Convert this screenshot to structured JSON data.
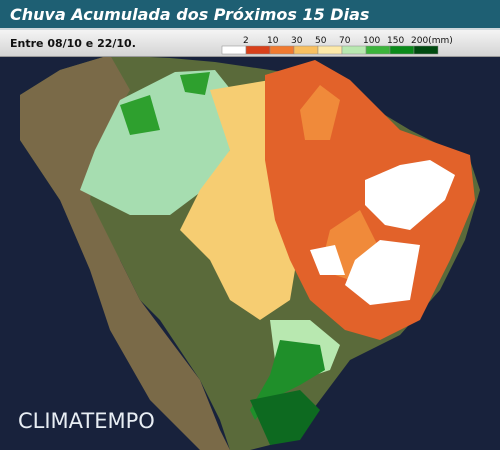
{
  "header": {
    "title": "Chuva Acumulada dos Próximos 15 Dias"
  },
  "subheader": {
    "period": "Entre 08/10 e 22/10.",
    "legend": {
      "labels": [
        "2",
        "10",
        "30",
        "50",
        "70",
        "100",
        "150",
        "200(mm)"
      ],
      "colors": [
        "#ffffff",
        "#d8401a",
        "#f07a30",
        "#f8c060",
        "#fde9a8",
        "#b8e8b0",
        "#3cb43c",
        "#0a8a1a",
        "#004a10"
      ]
    }
  },
  "watermark": "CLIMATEMPO"
}
